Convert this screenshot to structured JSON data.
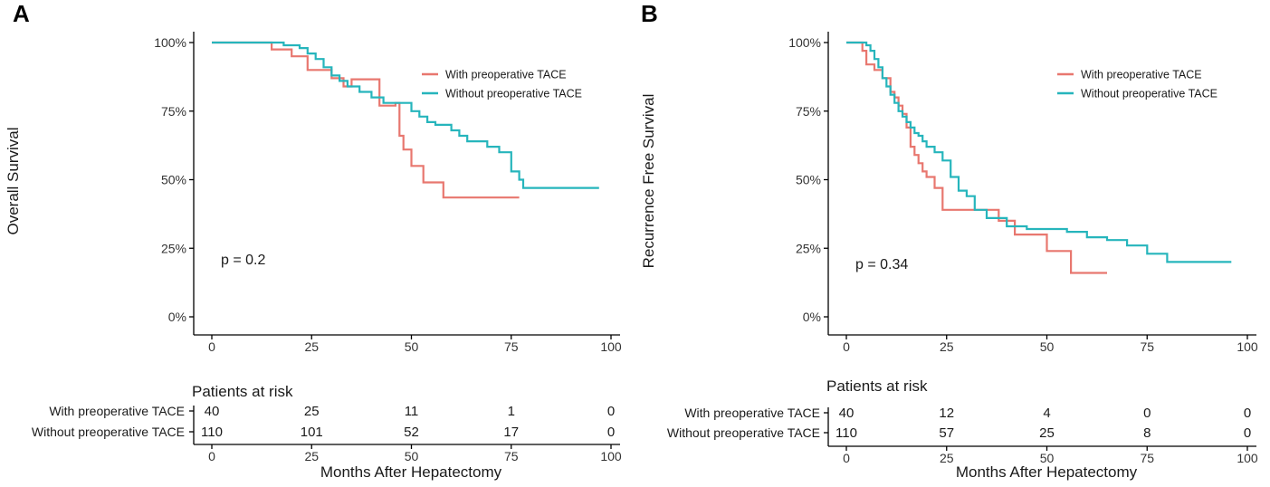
{
  "colors": {
    "with": "#E8776F",
    "without": "#26B5BC"
  },
  "chart_data": [
    {
      "type": "line",
      "panel": "A",
      "ylabel": "Overall Survival",
      "xlabel": "Months After Hepatectomy",
      "xlim": [
        0,
        100
      ],
      "ylim": [
        0,
        1
      ],
      "xticks": [
        0,
        25,
        50,
        75,
        100
      ],
      "xtick_labels": [
        "0",
        "25",
        "50",
        "75",
        "100"
      ],
      "yticks": [
        0,
        0.25,
        0.5,
        0.75,
        1
      ],
      "ytick_labels": [
        "0%",
        "25%",
        "50%",
        "75%",
        "100%"
      ],
      "legend_position": "top-right",
      "pvalue": "p = 0.2",
      "series": [
        {
          "name": "With preoperative TACE",
          "key": "with",
          "x": [
            0,
            14,
            15,
            20,
            24,
            28,
            30,
            33,
            35,
            38,
            40,
            42,
            44,
            46,
            47,
            48,
            50,
            53,
            58,
            77
          ],
          "y": [
            1,
            1,
            0.975,
            0.95,
            0.9,
            0.9,
            0.87,
            0.84,
            0.866,
            0.866,
            0.866,
            0.77,
            0.77,
            0.78,
            0.66,
            0.61,
            0.55,
            0.49,
            0.435,
            0.435
          ]
        },
        {
          "name": "Without preoperative TACE",
          "key": "without",
          "x": [
            0,
            16,
            18,
            22,
            24,
            26,
            28,
            30,
            32,
            34,
            37,
            40,
            43,
            45,
            48,
            50,
            52,
            54,
            56,
            58,
            60,
            62,
            64,
            66,
            69,
            72,
            75,
            77,
            78,
            80,
            97
          ],
          "y": [
            1,
            1,
            0.99,
            0.98,
            0.96,
            0.94,
            0.91,
            0.88,
            0.86,
            0.84,
            0.82,
            0.8,
            0.78,
            0.78,
            0.78,
            0.75,
            0.73,
            0.71,
            0.7,
            0.7,
            0.68,
            0.66,
            0.64,
            0.64,
            0.62,
            0.6,
            0.53,
            0.5,
            0.47,
            0.47,
            0.47
          ]
        }
      ],
      "risk_table": {
        "title": "Patients at risk",
        "rows": [
          {
            "label": "With preoperative TACE",
            "key": "with",
            "values": [
              "40",
              "25",
              "11",
              "1",
              "0"
            ]
          },
          {
            "label": "Without preoperative TACE",
            "key": "without",
            "values": [
              "110",
              "101",
              "52",
              "17",
              "0"
            ]
          }
        ]
      }
    },
    {
      "type": "line",
      "panel": "B",
      "ylabel": "Recurrence Free Survival",
      "xlabel": "Months After Hepatectomy",
      "xlim": [
        0,
        100
      ],
      "ylim": [
        0,
        1
      ],
      "xticks": [
        0,
        25,
        50,
        75,
        100
      ],
      "xtick_labels": [
        "0",
        "25",
        "50",
        "75",
        "100"
      ],
      "yticks": [
        0,
        0.25,
        0.5,
        0.75,
        1
      ],
      "ytick_labels": [
        "0%",
        "25%",
        "50%",
        "75%",
        "100%"
      ],
      "legend_position": "top-right",
      "pvalue": "p = 0.34",
      "series": [
        {
          "name": "With preoperative TACE",
          "key": "with",
          "x": [
            0,
            3,
            4,
            5,
            7,
            9,
            11,
            12,
            13,
            14,
            15,
            16,
            17,
            18,
            19,
            20,
            22,
            24,
            28,
            32,
            38,
            40,
            42,
            48,
            50,
            55,
            56,
            65
          ],
          "y": [
            1,
            1,
            0.97,
            0.92,
            0.9,
            0.87,
            0.82,
            0.8,
            0.77,
            0.74,
            0.69,
            0.62,
            0.59,
            0.56,
            0.53,
            0.51,
            0.47,
            0.39,
            0.39,
            0.39,
            0.35,
            0.35,
            0.3,
            0.3,
            0.24,
            0.24,
            0.16,
            0.16
          ]
        },
        {
          "name": "Without preoperative TACE",
          "key": "without",
          "x": [
            0,
            2,
            5,
            6,
            7,
            8,
            9,
            10,
            11,
            12,
            13,
            14,
            15,
            16,
            17,
            18,
            19,
            20,
            22,
            24,
            26,
            28,
            30,
            32,
            35,
            40,
            45,
            50,
            55,
            60,
            65,
            70,
            75,
            80,
            96
          ],
          "y": [
            1,
            1,
            0.99,
            0.97,
            0.94,
            0.91,
            0.87,
            0.84,
            0.81,
            0.78,
            0.75,
            0.73,
            0.71,
            0.69,
            0.67,
            0.66,
            0.64,
            0.62,
            0.6,
            0.57,
            0.51,
            0.46,
            0.44,
            0.39,
            0.36,
            0.33,
            0.32,
            0.32,
            0.31,
            0.29,
            0.28,
            0.26,
            0.23,
            0.2,
            0.2
          ]
        }
      ],
      "risk_table": {
        "title": "Patients at risk",
        "rows": [
          {
            "label": "With preoperative TACE",
            "key": "with",
            "values": [
              "40",
              "12",
              "4",
              "0",
              "0"
            ]
          },
          {
            "label": "Without preoperative TACE",
            "key": "without",
            "values": [
              "110",
              "57",
              "25",
              "8",
              "0"
            ]
          }
        ]
      }
    }
  ]
}
